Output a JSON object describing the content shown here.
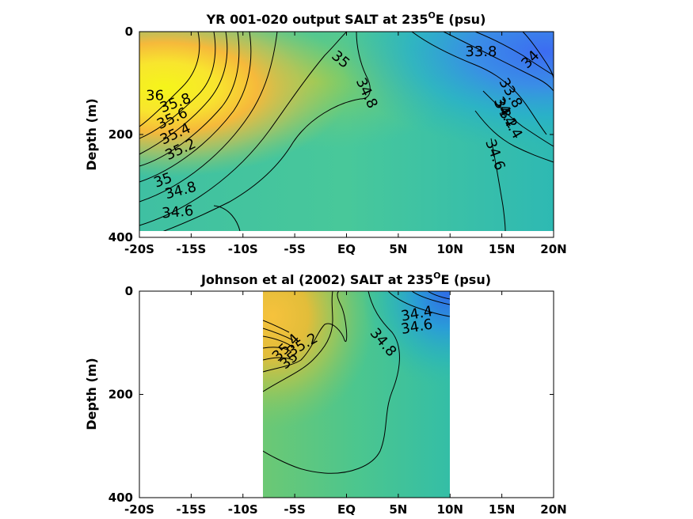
{
  "chart_data": [
    {
      "type": "heatmap",
      "title_main": "YR 001-020 output SALT at 235",
      "title_sup": "O",
      "title_end": "E (psu)",
      "ylabel": "Depth (m)",
      "xticks": [
        "-20S",
        "-15S",
        "-10S",
        "-5S",
        "EQ",
        "5N",
        "10N",
        "15N",
        "20N"
      ],
      "xvalues": [
        -20,
        -15,
        -10,
        -5,
        0,
        5,
        10,
        15,
        20
      ],
      "yticks": [
        "0",
        "200",
        "400"
      ],
      "yvalues": [
        0,
        200,
        400
      ],
      "xlim": [
        -20,
        20
      ],
      "ylim": [
        0,
        400
      ],
      "contour_levels": [
        33.8,
        34,
        34.2,
        34.4,
        34.6,
        34.8,
        35,
        35.2,
        35.4,
        35.6,
        35.8,
        36
      ],
      "contour_labels": [
        {
          "text": "36",
          "x": -18.5,
          "y": 125,
          "angle": 0
        },
        {
          "text": "35.8",
          "x": -16.5,
          "y": 140,
          "angle": -20
        },
        {
          "text": "35.6",
          "x": -16.8,
          "y": 170,
          "angle": -25
        },
        {
          "text": "35.4",
          "x": -16.5,
          "y": 200,
          "angle": -25
        },
        {
          "text": "35.2",
          "x": -16.0,
          "y": 230,
          "angle": -25
        },
        {
          "text": "35",
          "x": -17.7,
          "y": 290,
          "angle": -20
        },
        {
          "text": "34.8",
          "x": -16.0,
          "y": 310,
          "angle": -15
        },
        {
          "text": "34.6",
          "x": -16.3,
          "y": 352,
          "angle": -5
        },
        {
          "text": "35",
          "x": -0.6,
          "y": 55,
          "angle": 40
        },
        {
          "text": "34.8",
          "x": 1.9,
          "y": 120,
          "angle": 65
        },
        {
          "text": "33.8",
          "x": 13.0,
          "y": 40,
          "angle": 0
        },
        {
          "text": "34",
          "x": 17.8,
          "y": 55,
          "angle": -45
        },
        {
          "text": "33.8",
          "x": 15.8,
          "y": 120,
          "angle": 60
        },
        {
          "text": "34",
          "x": 15.0,
          "y": 145,
          "angle": 60
        },
        {
          "text": "34.2",
          "x": 15.3,
          "y": 160,
          "angle": 60
        },
        {
          "text": "34.4",
          "x": 15.8,
          "y": 180,
          "angle": 60
        },
        {
          "text": "34.6",
          "x": 14.3,
          "y": 240,
          "angle": 70
        }
      ]
    },
    {
      "type": "heatmap",
      "title_main": "Johnson et al (2002) SALT at 235",
      "title_sup": "O",
      "title_end": "E (psu)",
      "ylabel": "Depth (m)",
      "xticks": [
        "-20S",
        "-15S",
        "-10S",
        "-5S",
        "EQ",
        "5N",
        "10N",
        "15N",
        "20N"
      ],
      "xvalues": [
        -20,
        -15,
        -10,
        -5,
        0,
        5,
        10,
        15,
        20
      ],
      "yticks": [
        "0",
        "200",
        "400"
      ],
      "yvalues": [
        0,
        200,
        400
      ],
      "xlim": [
        -20,
        20
      ],
      "ylim": [
        0,
        400
      ],
      "data_extent_x": [
        -8,
        10
      ],
      "contour_labels": [
        {
          "text": "34.4",
          "x": 6.8,
          "y": 45,
          "angle": -10
        },
        {
          "text": "34.6",
          "x": 6.8,
          "y": 70,
          "angle": -10
        },
        {
          "text": "34.8",
          "x": 3.5,
          "y": 100,
          "angle": 50
        },
        {
          "text": "35.4",
          "x": -5.8,
          "y": 110,
          "angle": -45
        },
        {
          "text": "35.2",
          "x": -4.2,
          "y": 105,
          "angle": -30
        },
        {
          "text": "35",
          "x": -5.5,
          "y": 135,
          "angle": -40
        }
      ]
    }
  ]
}
